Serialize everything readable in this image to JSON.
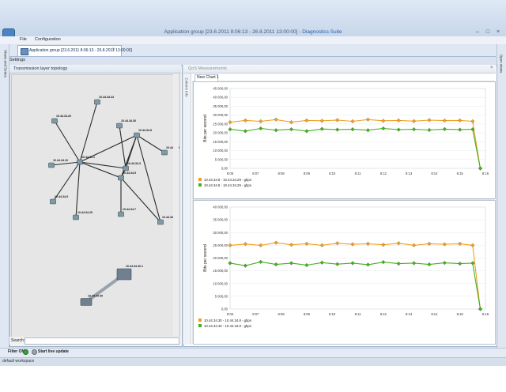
{
  "window": {
    "title_prefix": "Application group [23.6.2011 8:06:13 - 26.8.2011 13:00:00] - ",
    "title_suite": "Diagnostics Suite",
    "min_glyph": "–",
    "max_glyph": "□",
    "close_glyph": "×"
  },
  "menu": {
    "items": [
      "File",
      "Configuration"
    ]
  },
  "tab": {
    "label": "Application group [23.6.2011 8:06:13 - 26.8.2011 13:00:00]",
    "close": "×"
  },
  "settings_label": "Settings",
  "left_dock_label": "Views and Series",
  "right_dock_label": "Open views",
  "topology": {
    "title": "Transmission layer topology",
    "search_label": "Search:",
    "search_value": "",
    "nodes": [
      {
        "label": "10.44.34.20"
      },
      {
        "label": "10.44.34.10"
      },
      {
        "label": "10.44.34.1"
      },
      {
        "label": "10.44.34.8"
      },
      {
        "label": "10.44.34.5"
      },
      {
        "label": "10.44.34.50"
      },
      {
        "label": "10.44.34.15"
      },
      {
        "label": "10.44.34.7"
      },
      {
        "label": "10.44.34.25"
      },
      {
        "label": "10.44.34.3"
      },
      {
        "label": "10.44.34.9"
      },
      {
        "label": "10.44.34.30"
      },
      {
        "label": "10.44.34.40"
      },
      {
        "label": "10.44.34.40.1"
      },
      {
        "label": "10.44.34.44"
      }
    ]
  },
  "qos": {
    "title": "QoS Measurements",
    "side_label": "Column info",
    "chart_tab": "New Chart 1",
    "close": "×"
  },
  "chart_data": [
    {
      "type": "line",
      "title": "",
      "ylabel": "Bits per second",
      "xlabel": "",
      "ylim": [
        0,
        45000
      ],
      "yticks": [
        "0,00",
        "5 000,00",
        "10 000,00",
        "15 000,00",
        "20 000,00",
        "25 000,00",
        "30 000,00",
        "35 000,00",
        "40 000,00",
        "45 000,00"
      ],
      "xticks": [
        "8:06",
        "8:07",
        "8:08",
        "8:09",
        "8:10",
        "8:11",
        "8:12",
        "8:13",
        "8:14",
        "8:15",
        "8:16"
      ],
      "xrange": [
        6,
        16
      ],
      "series_colors": [
        "#f0a020",
        "#44b020"
      ],
      "legend_placement": "bottom-left",
      "series": [
        {
          "name": "10.44.34.8 - 10.44.34.29 - gbps",
          "x": [
            6.0,
            6.6,
            7.2,
            7.8,
            8.4,
            9.0,
            9.6,
            10.2,
            10.8,
            11.4,
            12.0,
            12.6,
            13.2,
            13.8,
            14.4,
            15.0,
            15.5,
            15.8
          ],
          "values": [
            26000,
            27000,
            26500,
            27500,
            26000,
            27000,
            26800,
            27200,
            26500,
            27500,
            26800,
            27000,
            26600,
            27200,
            26900,
            27000,
            26500,
            0
          ]
        },
        {
          "name": "10.44.34.8 - 10.44.34.29 - gbps",
          "x": [
            6.0,
            6.6,
            7.2,
            7.8,
            8.4,
            9.0,
            9.6,
            10.2,
            10.8,
            11.4,
            12.0,
            12.6,
            13.2,
            13.8,
            14.4,
            15.0,
            15.5,
            15.8
          ],
          "values": [
            22000,
            21000,
            22500,
            21500,
            22000,
            21000,
            22200,
            21800,
            22000,
            21500,
            22500,
            21800,
            22000,
            21600,
            22100,
            21800,
            22000,
            0
          ]
        }
      ]
    },
    {
      "type": "line",
      "title": "",
      "ylabel": "Bits per second",
      "xlabel": "",
      "ylim": [
        0,
        40000
      ],
      "yticks": [
        "0,00",
        "5 000,00",
        "10 000,00",
        "15 000,00",
        "20 000,00",
        "25 000,00",
        "30 000,00",
        "35 000,00",
        "40 000,00"
      ],
      "xticks": [
        "8:06",
        "8:07",
        "8:08",
        "8:09",
        "8:10",
        "8:11",
        "8:12",
        "8:13",
        "8:14",
        "8:15",
        "8:16"
      ],
      "xrange": [
        6,
        16
      ],
      "series_colors": [
        "#f0a020",
        "#44b020"
      ],
      "legend_placement": "bottom-left",
      "series": [
        {
          "name": "10.44.34.30 - 10.44.34.8 - gbps",
          "x": [
            6.0,
            6.6,
            7.2,
            7.8,
            8.4,
            9.0,
            9.6,
            10.2,
            10.8,
            11.4,
            12.0,
            12.6,
            13.2,
            13.8,
            14.4,
            15.0,
            15.5,
            15.8
          ],
          "values": [
            25000,
            25500,
            25000,
            26000,
            25200,
            25600,
            25000,
            25800,
            25400,
            25600,
            25200,
            25800,
            25000,
            25600,
            25400,
            25600,
            25000,
            0
          ]
        },
        {
          "name": "10.44.34.40 - 10.44.34.8 - gbps",
          "x": [
            6.0,
            6.6,
            7.2,
            7.8,
            8.4,
            9.0,
            9.6,
            10.2,
            10.8,
            11.4,
            12.0,
            12.6,
            13.2,
            13.8,
            14.4,
            15.0,
            15.5,
            15.8
          ],
          "values": [
            18000,
            17000,
            18500,
            17500,
            18000,
            17200,
            18200,
            17600,
            18000,
            17400,
            18400,
            17800,
            18000,
            17500,
            18100,
            17800,
            18000,
            0
          ]
        }
      ]
    }
  ]
}
